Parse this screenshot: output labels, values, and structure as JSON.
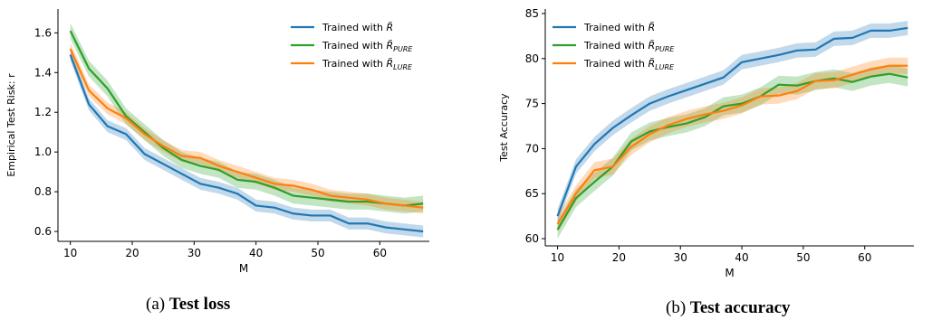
{
  "chart_data": [
    {
      "type": "line",
      "xlabel": "M",
      "ylabel": "Empirical Test Risk: r",
      "xlim": [
        8,
        68
      ],
      "ylim": [
        0.55,
        1.72
      ],
      "xticks": [
        10,
        20,
        30,
        40,
        50,
        60
      ],
      "yticks": [
        0.6,
        0.8,
        1.0,
        1.2,
        1.4,
        1.6
      ],
      "ytick_labels": [
        "0.6",
        "0.8",
        "1.0",
        "1.2",
        "1.4",
        "1.6"
      ],
      "legend_position": "top-right",
      "grid": false,
      "x": [
        10,
        13,
        16,
        19,
        22,
        25,
        28,
        31,
        34,
        37,
        40,
        43,
        46,
        49,
        52,
        55,
        58,
        61,
        64,
        67
      ],
      "series": [
        {
          "name": "Trained with R̃",
          "color": "#1f77b4",
          "values": [
            1.49,
            1.24,
            1.13,
            1.09,
            0.99,
            0.94,
            0.89,
            0.84,
            0.82,
            0.79,
            0.73,
            0.72,
            0.69,
            0.68,
            0.68,
            0.64,
            0.64,
            0.62,
            0.61,
            0.6
          ],
          "band": 0.03
        },
        {
          "name": "Trained with R̃PURE",
          "color": "#2ca02c",
          "values": [
            1.61,
            1.42,
            1.32,
            1.18,
            1.1,
            1.02,
            0.96,
            0.93,
            0.91,
            0.86,
            0.85,
            0.82,
            0.78,
            0.77,
            0.76,
            0.75,
            0.75,
            0.74,
            0.73,
            0.74
          ],
          "band": 0.04
        },
        {
          "name": "Trained with R̃LURE",
          "color": "#ff7f0e",
          "values": [
            1.52,
            1.31,
            1.22,
            1.17,
            1.09,
            1.03,
            0.98,
            0.97,
            0.93,
            0.9,
            0.87,
            0.84,
            0.83,
            0.81,
            0.78,
            0.77,
            0.76,
            0.74,
            0.73,
            0.72
          ],
          "band": 0.03
        }
      ],
      "legend": [
        {
          "prefix": "Trained with ",
          "sym": "R̃",
          "sub": ""
        },
        {
          "prefix": "Trained with ",
          "sym": "R̃",
          "sub": "PURE"
        },
        {
          "prefix": "Trained with ",
          "sym": "R̃",
          "sub": "LURE"
        }
      ]
    },
    {
      "type": "line",
      "xlabel": "M",
      "ylabel": "Test Accuracy",
      "xlim": [
        8,
        68
      ],
      "ylim": [
        59.2,
        85.5
      ],
      "xticks": [
        10,
        20,
        30,
        40,
        50,
        60
      ],
      "yticks": [
        60,
        65,
        70,
        75,
        80,
        85
      ],
      "ytick_labels": [
        "60",
        "65",
        "70",
        "75",
        "80",
        "85"
      ],
      "legend_position": "top-left",
      "grid": false,
      "x": [
        10,
        13,
        16,
        19,
        22,
        25,
        28,
        31,
        34,
        37,
        40,
        43,
        46,
        49,
        52,
        55,
        58,
        61,
        64,
        67
      ],
      "series": [
        {
          "name": "Trained with R̃",
          "color": "#1f77b4",
          "values": [
            62.5,
            68.0,
            70.5,
            72.3,
            73.7,
            75.0,
            75.8,
            76.5,
            77.2,
            77.9,
            79.6,
            80.0,
            80.4,
            80.9,
            81.0,
            82.2,
            82.3,
            83.1,
            83.1,
            83.4
          ],
          "band": 0.8
        },
        {
          "name": "Trained with R̃PURE",
          "color": "#2ca02c",
          "values": [
            61.0,
            64.5,
            66.3,
            68.0,
            70.8,
            71.9,
            72.4,
            72.8,
            73.5,
            74.7,
            75.0,
            75.8,
            77.1,
            77.0,
            77.5,
            77.8,
            77.4,
            78.0,
            78.3,
            77.9
          ],
          "band": 1.0
        },
        {
          "name": "Trained with R̃LURE",
          "color": "#ff7f0e",
          "values": [
            61.6,
            65.0,
            67.6,
            68.0,
            70.2,
            71.6,
            72.6,
            73.3,
            73.8,
            74.2,
            74.8,
            75.8,
            75.9,
            76.4,
            77.5,
            77.6,
            78.2,
            78.8,
            79.2,
            79.2
          ],
          "band": 0.9
        }
      ],
      "legend": [
        {
          "prefix": "Trained with ",
          "sym": "R̃",
          "sub": ""
        },
        {
          "prefix": "Trained with ",
          "sym": "R̃",
          "sub": "PURE"
        },
        {
          "prefix": "Trained with ",
          "sym": "R̃",
          "sub": "LURE"
        }
      ]
    }
  ],
  "captions": {
    "a_prefix": "(a) ",
    "a_bold": "Test loss",
    "b_prefix": "(b) ",
    "b_bold": "Test accuracy"
  }
}
